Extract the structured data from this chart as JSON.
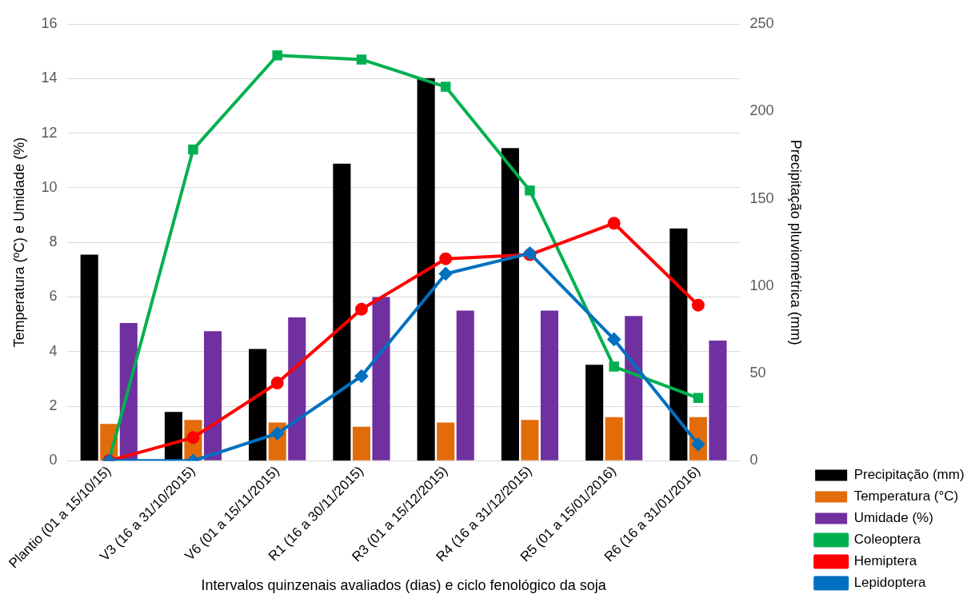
{
  "chart_data": {
    "type": "bar",
    "xlabel": "Intervalos quinzenais avaliados (dias) e ciclo fenológico da soja",
    "ylabel": "Temperatura (ºC) e Umidade (%)",
    "y2label": "Precipitação pluviométrica (mm)",
    "categories": [
      "Plantio (01 a 15/10/15)",
      "V3 (16 a 31/10/2015)",
      "V6 (01 a 15/11/2015)",
      "R1 (16 a 30/11/2015)",
      "R3 (01 a 15/12/2015)",
      "R4 (16 a 31/12/2015)",
      "R5 (01 a 15/01/2016)",
      "R6 (16 a 31/01/2016)"
    ],
    "series": [
      {
        "name": "Precipitação (mm)",
        "axis": "y2",
        "color": "#000000",
        "values": [
          118,
          28,
          64,
          170,
          219,
          179,
          55,
          133
        ]
      },
      {
        "name": "Temperatura (°C)",
        "color": "#e36c0a",
        "values": [
          1.35,
          1.5,
          1.4,
          1.25,
          1.4,
          1.5,
          1.6,
          1.6
        ]
      },
      {
        "name": "Umidade (%)",
        "color": "#7030a0",
        "values": [
          5.05,
          4.75,
          5.25,
          6.0,
          5.5,
          5.5,
          5.3,
          4.4
        ]
      },
      {
        "name": "Coleoptera",
        "type": "line",
        "marker": "square",
        "color": "#00b050",
        "values": [
          0,
          11.4,
          14.85,
          14.7,
          13.7,
          9.9,
          3.45,
          2.3
        ]
      },
      {
        "name": "Hemiptera",
        "type": "line",
        "marker": "circle",
        "color": "#ff0000",
        "values": [
          0,
          0.85,
          2.85,
          5.55,
          7.4,
          7.55,
          8.7,
          5.7
        ]
      },
      {
        "name": "Lepidoptera",
        "type": "line",
        "marker": "diamond",
        "color": "#0070c0",
        "values": [
          0,
          0,
          1.0,
          3.1,
          6.85,
          7.6,
          4.45,
          0.6
        ]
      }
    ],
    "ylim": [
      0,
      16
    ],
    "yticks": [
      0,
      2,
      4,
      6,
      8,
      10,
      12,
      14,
      16
    ],
    "y2lim": [
      0,
      250
    ],
    "y2ticks": [
      0,
      50,
      100,
      150,
      200,
      250
    ],
    "grid": "y",
    "legend": "bottom right"
  }
}
